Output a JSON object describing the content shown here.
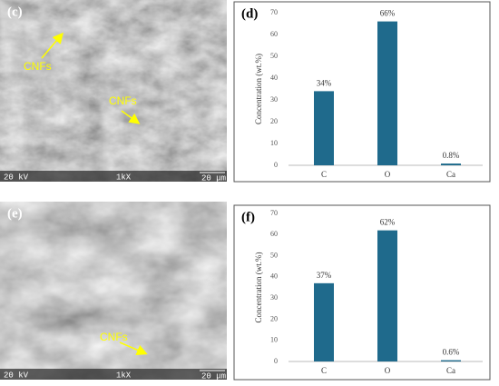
{
  "panels": [
    {
      "label": "(c)",
      "annotations": [
        "CNFs",
        "CNFs"
      ],
      "voltage": "20 kV",
      "magnification": "1kX",
      "scale": "20 μm"
    },
    {
      "label": "(e)",
      "annotations": [
        "CNFs"
      ],
      "voltage": "20 kV",
      "magnification": "1kX",
      "scale": "20 μm"
    }
  ],
  "chart_data": [
    {
      "type": "bar",
      "label": "(d)",
      "y_label": "Concentration (wt.%)",
      "categories": [
        "C",
        "O",
        "Ca"
      ],
      "values": [
        34,
        66,
        0.8
      ],
      "value_labels": [
        "34%",
        "66%",
        "0.8%"
      ],
      "color": "#1f6a8c",
      "ylim": [
        0,
        70
      ],
      "yticks": [
        0,
        10,
        20,
        30,
        40,
        50,
        60,
        70
      ]
    },
    {
      "type": "bar",
      "label": "(f)",
      "y_label": "Concentration (wt.%)",
      "categories": [
        "C",
        "O",
        "Ca"
      ],
      "values": [
        37,
        62,
        0.6
      ],
      "value_labels": [
        "37%",
        "62%",
        "0.6%"
      ],
      "color": "#1f6a8c",
      "ylim": [
        0,
        70
      ],
      "yticks": [
        0,
        10,
        20,
        30,
        40,
        50,
        60,
        70
      ]
    }
  ]
}
